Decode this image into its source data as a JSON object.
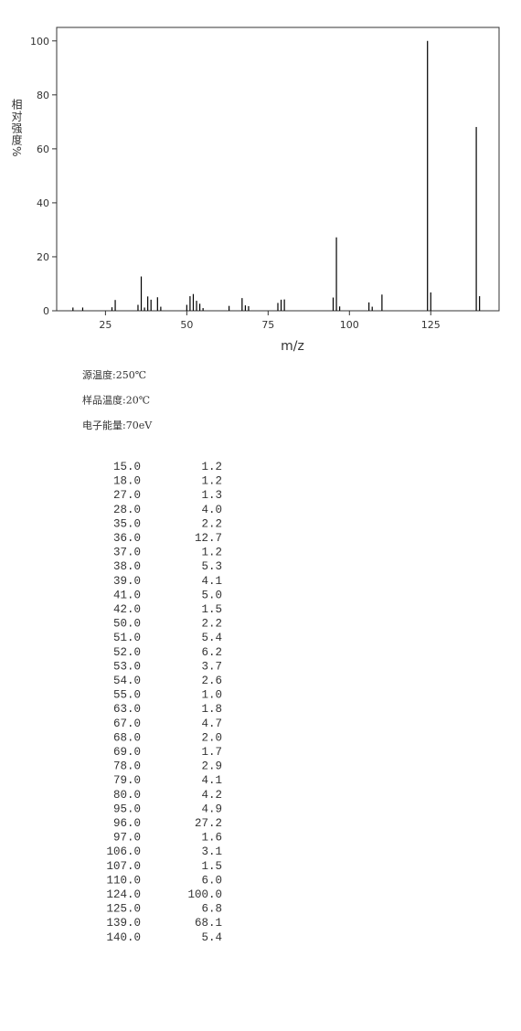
{
  "chart_data": {
    "type": "bar",
    "x_label": "m/z",
    "y_label": "相对强度%",
    "x": [
      15,
      18,
      27,
      28,
      35,
      36,
      37,
      38,
      39,
      41,
      42,
      50,
      51,
      52,
      53,
      54,
      55,
      63,
      67,
      68,
      69,
      78,
      79,
      80,
      95,
      96,
      97,
      106,
      107,
      110,
      124,
      125,
      139,
      140
    ],
    "values": [
      1.2,
      1.2,
      1.3,
      4.0,
      2.2,
      12.7,
      1.2,
      5.3,
      4.1,
      5.0,
      1.5,
      2.2,
      5.4,
      6.2,
      3.7,
      2.6,
      1.0,
      1.8,
      4.7,
      2.0,
      1.7,
      2.9,
      4.1,
      4.2,
      4.9,
      27.2,
      1.6,
      3.1,
      1.5,
      6.0,
      100.0,
      6.8,
      68.1,
      5.4
    ],
    "color": "#000000",
    "xlim": [
      10,
      146
    ],
    "xticks": [
      25,
      50,
      75,
      100,
      125
    ],
    "ylim": [
      0,
      105
    ],
    "yticks": [
      0,
      20,
      40,
      60,
      80,
      100
    ]
  },
  "info": [
    "源温度:250℃",
    "样品温度:20℃",
    "电子能量:70eV"
  ],
  "table": {
    "rows": [
      [
        "15.0",
        "1.2"
      ],
      [
        "18.0",
        "1.2"
      ],
      [
        "27.0",
        "1.3"
      ],
      [
        "28.0",
        "4.0"
      ],
      [
        "35.0",
        "2.2"
      ],
      [
        "36.0",
        "12.7"
      ],
      [
        "37.0",
        "1.2"
      ],
      [
        "38.0",
        "5.3"
      ],
      [
        "39.0",
        "4.1"
      ],
      [
        "41.0",
        "5.0"
      ],
      [
        "42.0",
        "1.5"
      ],
      [
        "50.0",
        "2.2"
      ],
      [
        "51.0",
        "5.4"
      ],
      [
        "52.0",
        "6.2"
      ],
      [
        "53.0",
        "3.7"
      ],
      [
        "54.0",
        "2.6"
      ],
      [
        "55.0",
        "1.0"
      ],
      [
        "63.0",
        "1.8"
      ],
      [
        "67.0",
        "4.7"
      ],
      [
        "68.0",
        "2.0"
      ],
      [
        "69.0",
        "1.7"
      ],
      [
        "78.0",
        "2.9"
      ],
      [
        "79.0",
        "4.1"
      ],
      [
        "80.0",
        "4.2"
      ],
      [
        "95.0",
        "4.9"
      ],
      [
        "96.0",
        "27.2"
      ],
      [
        "97.0",
        "1.6"
      ],
      [
        "106.0",
        "3.1"
      ],
      [
        "107.0",
        "1.5"
      ],
      [
        "110.0",
        "6.0"
      ],
      [
        "124.0",
        "100.0"
      ],
      [
        "125.0",
        "6.8"
      ],
      [
        "139.0",
        "68.1"
      ],
      [
        "140.0",
        "5.4"
      ]
    ]
  }
}
